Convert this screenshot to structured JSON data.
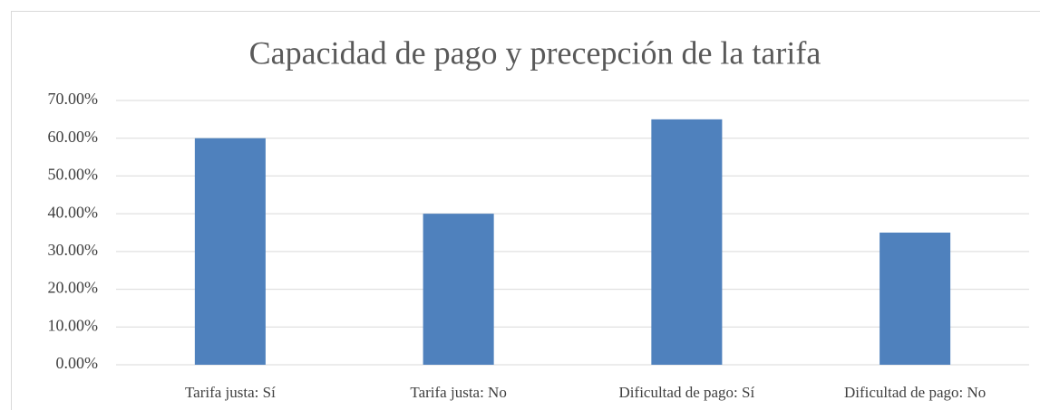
{
  "chart_data": {
    "type": "bar",
    "title": "Capacidad de pago y precepción de la tarifa",
    "categories": [
      "Tarifa justa: Sí",
      "Tarifa justa: No",
      "Dificultad de pago: Sí",
      "Dificultad de pago: No"
    ],
    "values": [
      60,
      40,
      65,
      35
    ],
    "color": "#4f81bd",
    "ylim": [
      0,
      70
    ],
    "yticks": [
      {
        "value": 0,
        "label": "0.00%"
      },
      {
        "value": 10,
        "label": "10.00%"
      },
      {
        "value": 20,
        "label": "20.00%"
      },
      {
        "value": 30,
        "label": "30.00%"
      },
      {
        "value": 40,
        "label": "40.00%"
      },
      {
        "value": 50,
        "label": "50.00%"
      },
      {
        "value": 60,
        "label": "60.00%"
      },
      {
        "value": 70,
        "label": "70.00%"
      }
    ],
    "grid": true
  }
}
